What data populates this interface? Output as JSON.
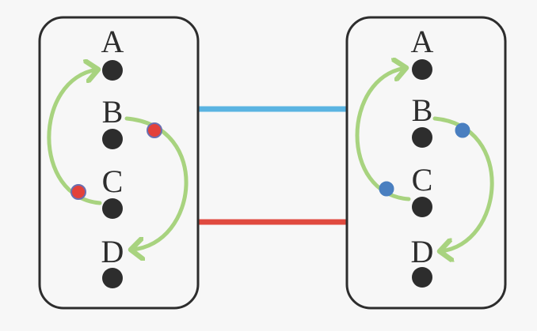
{
  "colors": {
    "background": "#f7f7f7",
    "panel_fill": "#f7f7f7",
    "panel_stroke": "#2d2d2d",
    "node": "#2d2d2d",
    "arrow": "#a8d37f",
    "link_top": "#5ab4e2",
    "link_bottom": "#e04a3f",
    "marker_left": "#e3413a",
    "marker_left_ring": "#6b6fb0",
    "marker_right": "#4a7fc0"
  },
  "panels": [
    {
      "name": "left",
      "nodes": [
        {
          "label": "A"
        },
        {
          "label": "B"
        },
        {
          "label": "C"
        },
        {
          "label": "D"
        }
      ]
    },
    {
      "name": "right",
      "nodes": [
        {
          "label": "A"
        },
        {
          "label": "B"
        },
        {
          "label": "C"
        },
        {
          "label": "D"
        }
      ]
    }
  ],
  "links": [
    {
      "name": "top",
      "color_key": "link_top"
    },
    {
      "name": "bottom",
      "color_key": "link_bottom"
    }
  ],
  "arrows": [
    {
      "panel": "left",
      "from": "C",
      "to": "A"
    },
    {
      "panel": "left",
      "from": "B",
      "to": "D"
    },
    {
      "panel": "right",
      "from": "C",
      "to": "A"
    },
    {
      "panel": "right",
      "from": "B",
      "to": "D"
    }
  ]
}
